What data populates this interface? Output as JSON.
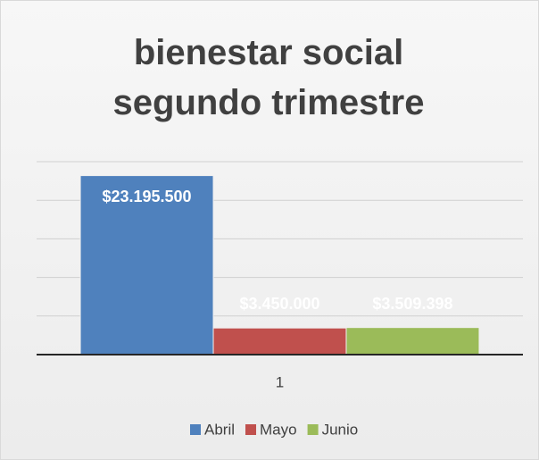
{
  "chart_data": {
    "type": "bar",
    "title": "bienestar social segundo trimestre",
    "categories": [
      "1"
    ],
    "series": [
      {
        "name": "Abril",
        "color": "#4f81bd",
        "values": [
          23195500
        ],
        "value_labels": [
          "$23.195.500"
        ]
      },
      {
        "name": "Mayo",
        "color": "#c0504d",
        "values": [
          3450000
        ],
        "value_labels": [
          "$3.450.000"
        ]
      },
      {
        "name": "Junio",
        "color": "#9bbb59",
        "values": [
          3509398
        ],
        "value_labels": [
          "$3.509.398"
        ]
      }
    ],
    "ylim": [
      0,
      25000000
    ],
    "yticks": [
      0,
      5000000,
      10000000,
      15000000,
      20000000,
      25000000
    ],
    "grid": true,
    "legend": "bottom"
  }
}
